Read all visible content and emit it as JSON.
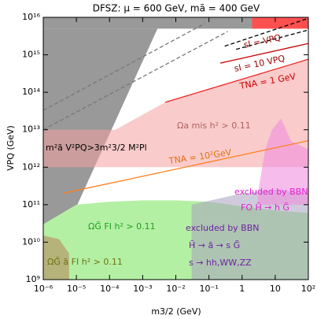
{
  "chart_data": {
    "type": "region",
    "title": "DFSZ:  μ = 600 GeV,  mã = 400 GeV",
    "xlabel": "m3/2 (GeV)",
    "ylabel": "VPQ (GeV)",
    "xscale": "log",
    "yscale": "log",
    "xlim": [
      1e-06,
      100
    ],
    "ylim": [
      1000000000.0,
      1e+16
    ],
    "xticks": [
      {
        "value": 1e-06,
        "label": "10⁻⁶"
      },
      {
        "value": 1e-05,
        "label": "10⁻⁵"
      },
      {
        "value": 0.0001,
        "label": "10⁻⁴"
      },
      {
        "value": 0.001,
        "label": "10⁻³"
      },
      {
        "value": 0.01,
        "label": "10⁻²"
      },
      {
        "value": 0.1,
        "label": "10⁻¹"
      },
      1,
      10,
      {
        "value": 100,
        "label": "10²"
      }
    ],
    "yticks": [
      {
        "value": 1000000000.0,
        "label": "10⁹"
      },
      {
        "value": 10000000000.0,
        "label": "10¹⁰"
      },
      {
        "value": 100000000000.0,
        "label": "10¹¹"
      },
      {
        "value": 1000000000000.0,
        "label": "10¹²"
      },
      {
        "value": 10000000000000.0,
        "label": "10¹³"
      },
      {
        "value": 100000000000000.0,
        "label": "10¹⁴"
      },
      {
        "value": 1000000000000000.0,
        "label": "10¹⁵"
      },
      {
        "value": 1e+16,
        "label": "10¹⁶"
      }
    ],
    "regions": [
      {
        "color": "#999999",
        "opacity": 1,
        "x": [
          1e-06,
          1e-06,
          0.0028
        ],
        "y": [
          1000000000.0,
          5000000000000000.0,
          5000000000000000.0
        ]
      },
      {
        "color": "#999999",
        "opacity": 1,
        "x": [
          1e-06,
          100,
          100,
          1e-06
        ],
        "y": [
          5000000000000000.0,
          5000000000000000.0,
          1e+16,
          1e+16
        ]
      },
      {
        "color": "#ff5050",
        "opacity": 1,
        "x": [
          2,
          100,
          100,
          2
        ],
        "y": [
          5000000000000000.0,
          5000000000000000.0,
          1e+16,
          1e+16
        ]
      },
      {
        "color": "#f6a0a0",
        "opacity": 0.55,
        "x": [
          1e-06,
          100,
          100,
          0.0048,
          0.00015,
          1e-06
        ],
        "y": [
          1000000000000.0,
          1000000000000.0,
          760000000000000.0,
          54000000000000.0,
          10000000000000.0,
          10000000000000.0
        ]
      },
      {
        "color": "#b4f0a4",
        "opacity": 1,
        "x": [
          1e-06,
          1e-05,
          0.0001,
          0.001,
          0.01,
          0.1,
          1,
          10,
          100,
          100,
          1e-06
        ],
        "y": [
          30000000000.0,
          100000000000.0,
          120000000000.0,
          130000000000.0,
          130000000000.0,
          120000000000.0,
          90000000000.0,
          70000000000.0,
          60000000000.0,
          1000000000.0,
          1000000000.0
        ]
      },
      {
        "color": "#b5b27a",
        "opacity": 1,
        "x": [
          1e-06,
          3e-06,
          6e-06,
          6e-06,
          1e-06
        ],
        "y": [
          15000000000.0,
          12000000000.0,
          5000000000.0,
          1000000000.0,
          1000000000.0
        ]
      },
      {
        "color": "#a8a0c0",
        "opacity": 0.55,
        "x": [
          0.03,
          0.03,
          1,
          10,
          100,
          100
        ],
        "y": [
          1000000000.0,
          100000000000.0,
          200000000000.0,
          250000000000.0,
          200000000000.0,
          1000000000.0
        ]
      },
      {
        "color": "#f090e0",
        "opacity": 0.6,
        "x": [
          3,
          5,
          8,
          15,
          30,
          100,
          100,
          3
        ],
        "y": [
          200000000000.0,
          3000000000000.0,
          10000000000000.0,
          20000000000000.0,
          5000000000000.0,
          3000000000000.0,
          100000000000.0,
          100000000000.0
        ]
      }
    ],
    "lines": [
      {
        "color": "#777777",
        "dash": true,
        "x": [
          1e-06,
          0.074
        ],
        "y": [
          33000000000000.0,
          6800000000000000.0
        ]
      },
      {
        "color": "#777777",
        "dash": true,
        "x": [
          1e-06,
          0.37
        ],
        "y": [
          10000000000000.0,
          4200000000000000.0
        ]
      },
      {
        "color": "#000000",
        "dash": true,
        "x": [
          0.3,
          100
        ],
        "y": [
          1700000000000000.0,
          9400000000000000.0
        ]
      },
      {
        "color": "#000000",
        "dash": true,
        "x": [
          0.66,
          100
        ],
        "y": [
          1400000000000000.0,
          4600000000000000.0
        ]
      },
      {
        "color": "#cc0000",
        "dash": false,
        "x": [
          0.22,
          100
        ],
        "y": [
          600000000000000.0,
          2000000000000000.0
        ]
      },
      {
        "color": "#ee2222",
        "dash": false,
        "x": [
          0.0048,
          100
        ],
        "y": [
          54000000000000.0,
          760000000000000.0
        ]
      },
      {
        "color": "#ff8020",
        "dash": false,
        "x": [
          3.9e-06,
          100
        ],
        "y": [
          200000000000.0,
          5100000000000.0
        ]
      }
    ],
    "annotations": [
      {
        "text": "sI = VPQ",
        "color": "#990000"
      },
      {
        "text": "sI = 10 VPQ",
        "color": "#990000"
      },
      {
        "text": "TNA = 1 GeV",
        "color": "#cc0000"
      },
      {
        "text": "Ωa mis h² > 0.11",
        "color": "#b06060"
      },
      {
        "text": "m²ã V²PQ>3m²3/2 M²Pl",
        "color": "#000000"
      },
      {
        "text": "TNA = 10²GeV",
        "color": "#e07010"
      },
      {
        "text": "excluded by BBN",
        "color": "#e020d0"
      },
      {
        "text": "FO  H̃ → h G̃",
        "color": "#e020d0"
      },
      {
        "text": "excluded by BBN",
        "color": "#7020a0"
      },
      {
        "text": "H̃ → ã → s G̃",
        "color": "#7020a0"
      },
      {
        "text": "s → hh,WW,ZZ",
        "color": "#7020a0"
      },
      {
        "text": "ΩG̃ FI h² > 0.11",
        "color": "#20a020"
      },
      {
        "text": "ΩG̃ ã FI h² > 0.11",
        "color": "#707010"
      }
    ]
  }
}
